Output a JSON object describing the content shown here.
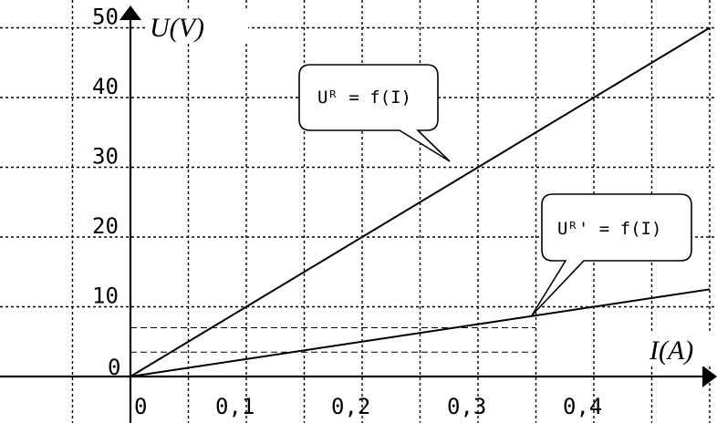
{
  "chart_data": {
    "type": "line",
    "xlabel": "I(A)",
    "ylabel": "U(V)",
    "xlim": [
      -0.1,
      0.5
    ],
    "ylim": [
      -2.5,
      50
    ],
    "x_ticks": [
      {
        "value": 0,
        "label": "0"
      },
      {
        "value": 0.1,
        "label": "0,1"
      },
      {
        "value": 0.2,
        "label": "0,2"
      },
      {
        "value": 0.3,
        "label": "0,3"
      },
      {
        "value": 0.4,
        "label": "0,4"
      }
    ],
    "y_ticks": [
      {
        "value": 0,
        "label": "0"
      },
      {
        "value": 10,
        "label": "10"
      },
      {
        "value": 20,
        "label": "20"
      },
      {
        "value": 30,
        "label": "30"
      },
      {
        "value": 40,
        "label": "40"
      },
      {
        "value": 50,
        "label": "50"
      }
    ],
    "grid": true,
    "grid_minor_x": 0.05,
    "grid_y": 10,
    "series": [
      {
        "name": "U_R = f(I)",
        "x": [
          0,
          0.1,
          0.2,
          0.3,
          0.4,
          0.5
        ],
        "y": [
          0,
          10,
          20,
          30,
          40,
          50
        ]
      },
      {
        "name": "U_R' = f(I)",
        "x": [
          0,
          0.1,
          0.2,
          0.3,
          0.4,
          0.5
        ],
        "y": [
          0,
          2.5,
          5,
          7.5,
          10,
          12.5
        ]
      }
    ],
    "guide_lines_y": [
      3.5,
      7
    ]
  },
  "annotations": {
    "callout_1": "Uᴿ = f(I)",
    "callout_2": "Uᴿ' = f(I)"
  }
}
